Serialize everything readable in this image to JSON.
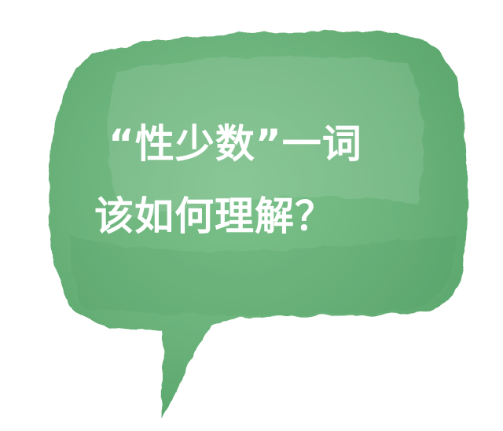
{
  "bubble": {
    "line1": "“性少数”一词",
    "line2": "该如何理解？",
    "fill_color": "#6fb57e",
    "text_color": "#ffffff"
  }
}
